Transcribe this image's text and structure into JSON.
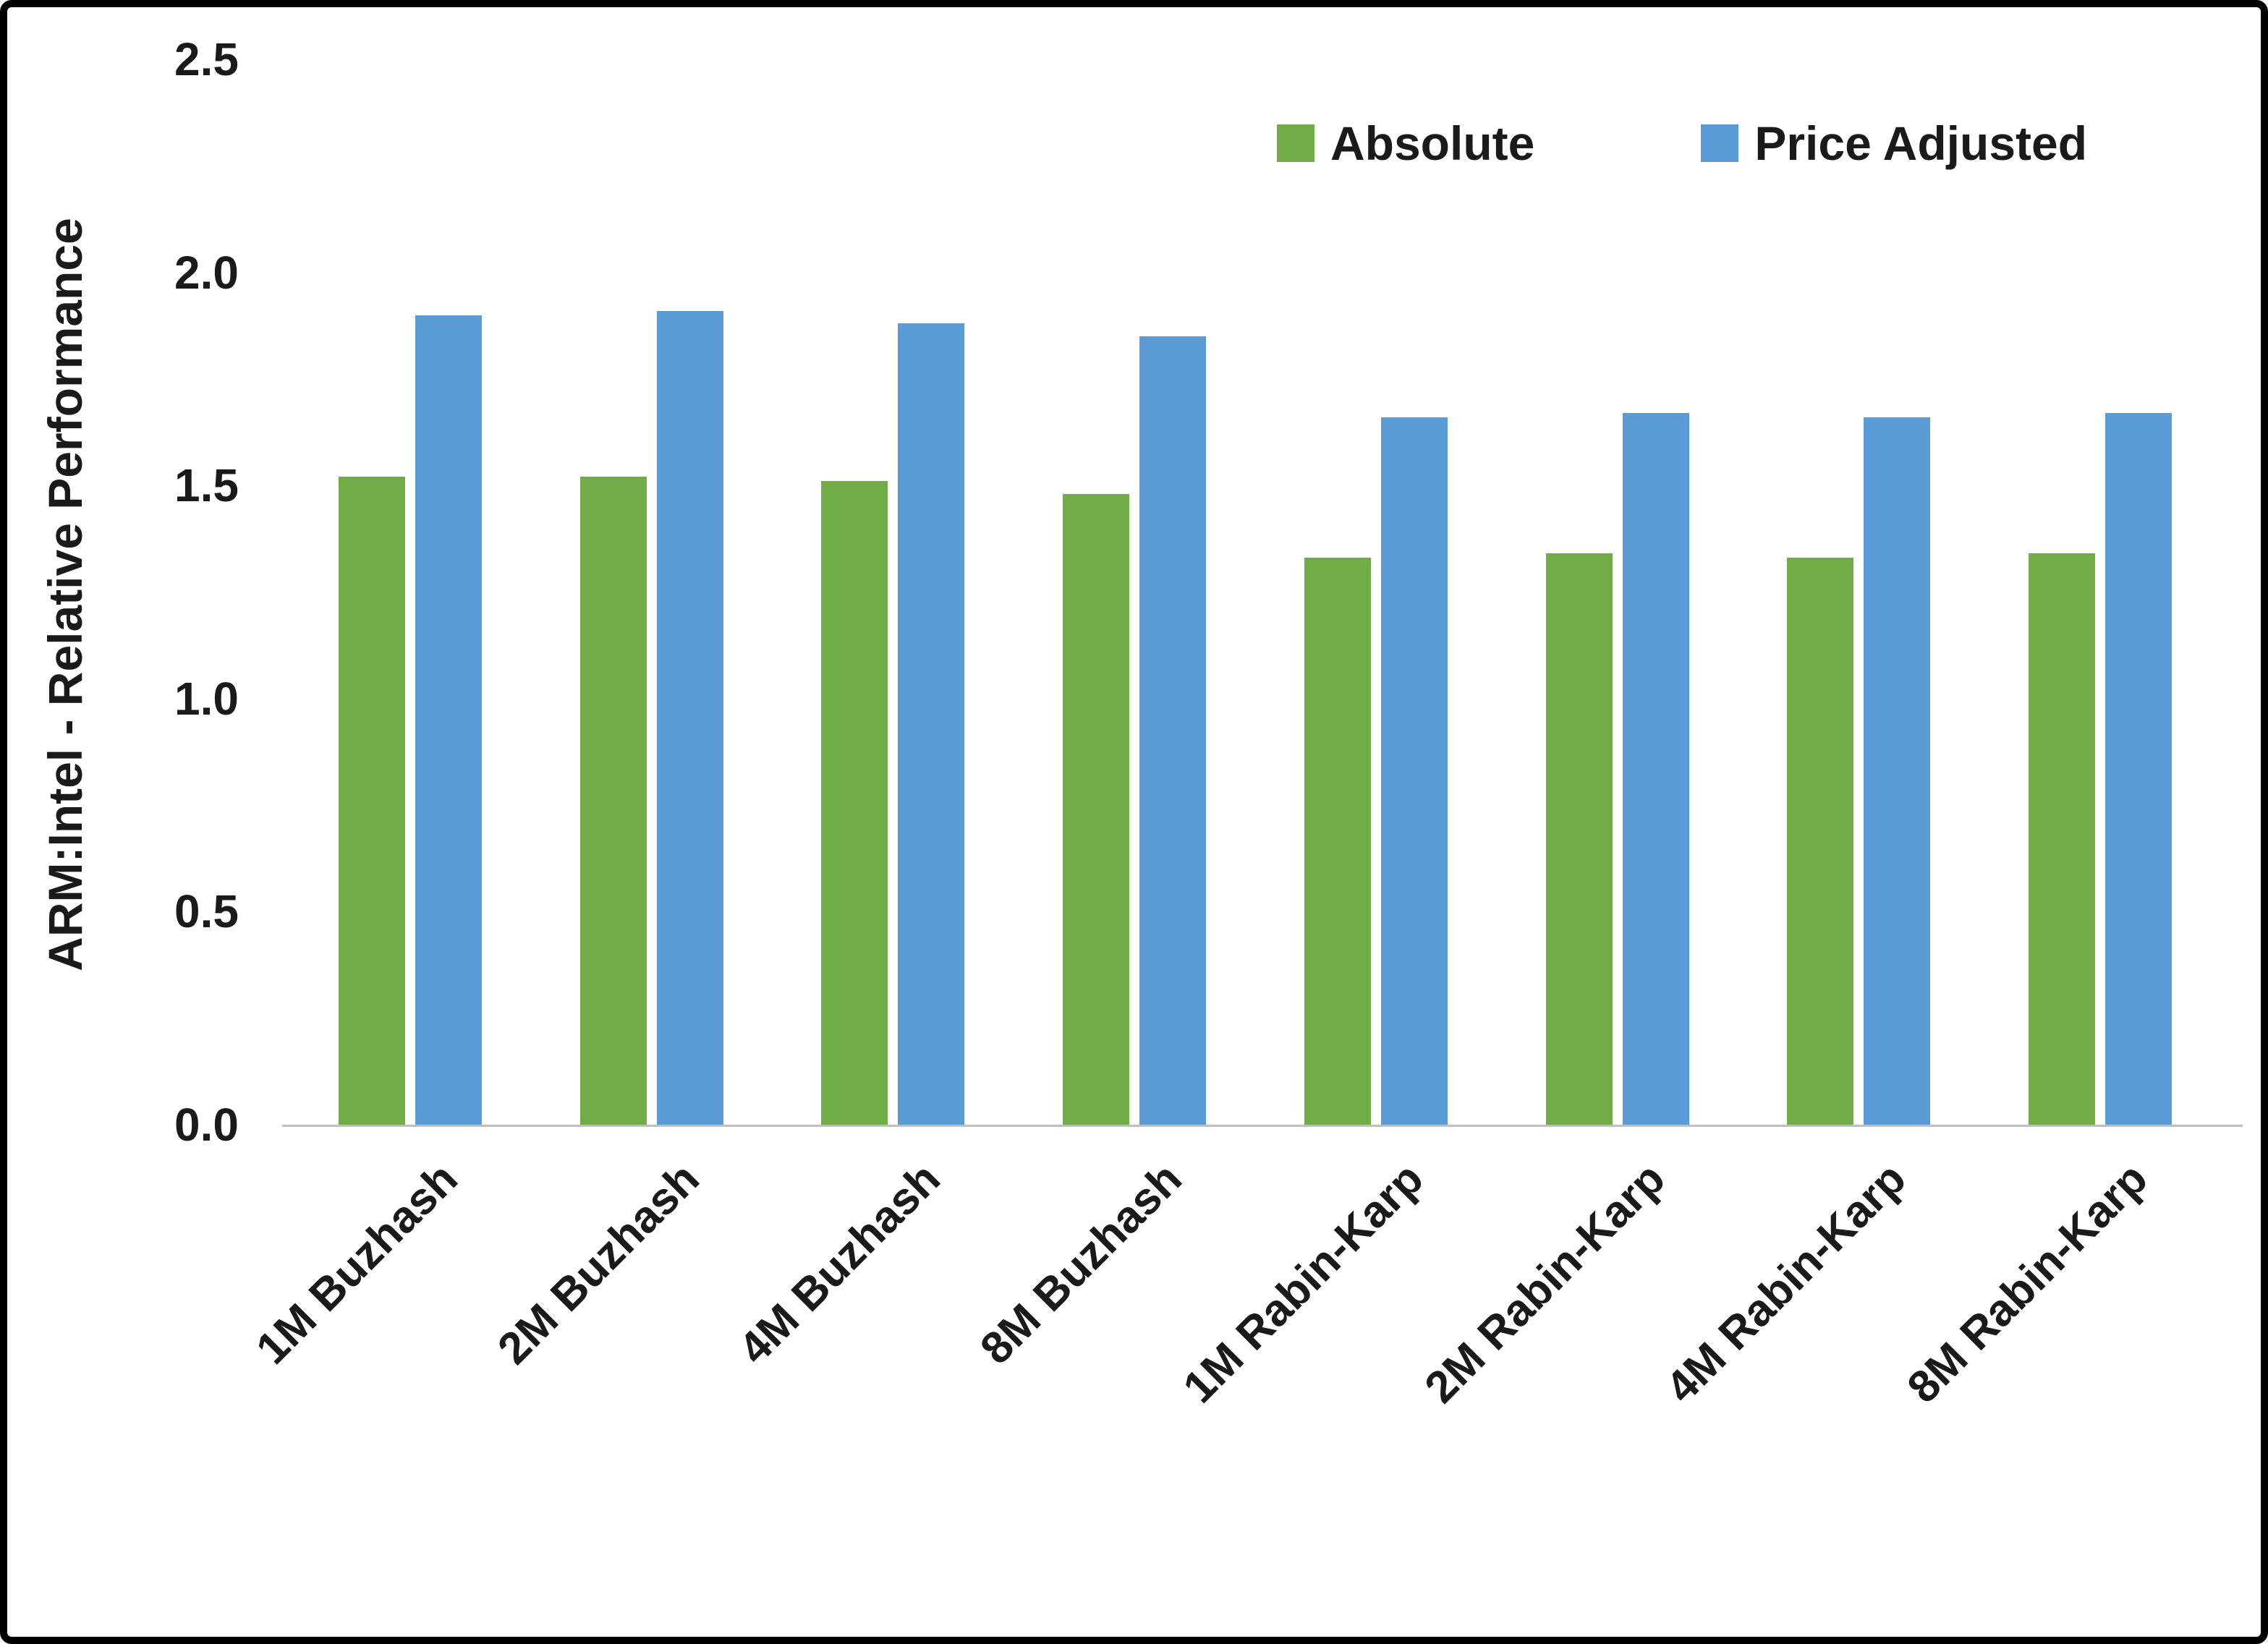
{
  "chart_data": {
    "type": "bar",
    "title": "",
    "xlabel": "",
    "ylabel": "ARM:Intel - Relative Performance",
    "ylim": [
      0,
      2.5
    ],
    "yticks": [
      "0.0",
      "0.5",
      "1.0",
      "1.5",
      "2.0",
      "2.5"
    ],
    "grid": false,
    "legend_position": "top-right",
    "categories": [
      "1M Buzhash",
      "2M Buzhash",
      "4M Buzhash",
      "8M Buzhash",
      "1M Rabin-Karp",
      "2M Rabin-Karp",
      "4M Rabin-Karp",
      "8M Rabin-Karp"
    ],
    "series": [
      {
        "name": "Absolute",
        "color": "#70AD47",
        "values": [
          1.52,
          1.52,
          1.51,
          1.48,
          1.33,
          1.34,
          1.33,
          1.34
        ]
      },
      {
        "name": "Price Adjusted",
        "color": "#5B9BD5",
        "values": [
          1.9,
          1.91,
          1.88,
          1.85,
          1.66,
          1.67,
          1.66,
          1.67
        ]
      }
    ],
    "colors": {
      "axis_line": "#bfbfbf",
      "text": "#1a1a1a",
      "background": "#ffffff"
    }
  }
}
